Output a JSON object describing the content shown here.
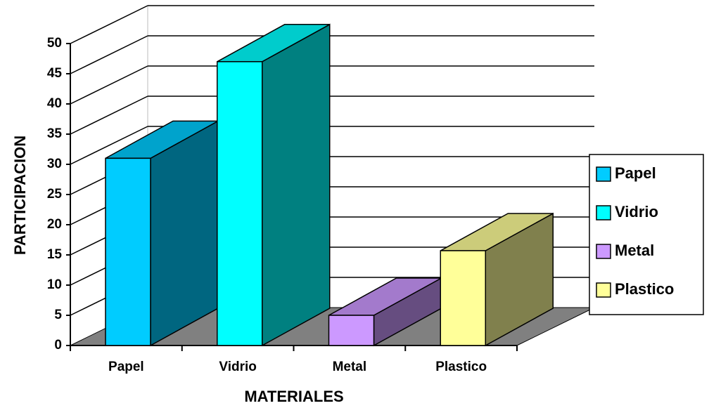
{
  "chart_data": {
    "type": "bar3d",
    "categories": [
      "Papel",
      "Vidrio",
      "Metal",
      "Plastico"
    ],
    "values": [
      31,
      47,
      5,
      15.7
    ],
    "colors": [
      "#00ccff",
      "#00ffff",
      "#cc99ff",
      "#ffff99"
    ],
    "ylim": [
      0,
      50
    ],
    "yticks": [
      0,
      5,
      10,
      15,
      20,
      25,
      30,
      35,
      40,
      45,
      50
    ],
    "xlabel": "MATERIALES",
    "ylabel": "PARTICIPACION",
    "grid": true,
    "legend": "right"
  }
}
